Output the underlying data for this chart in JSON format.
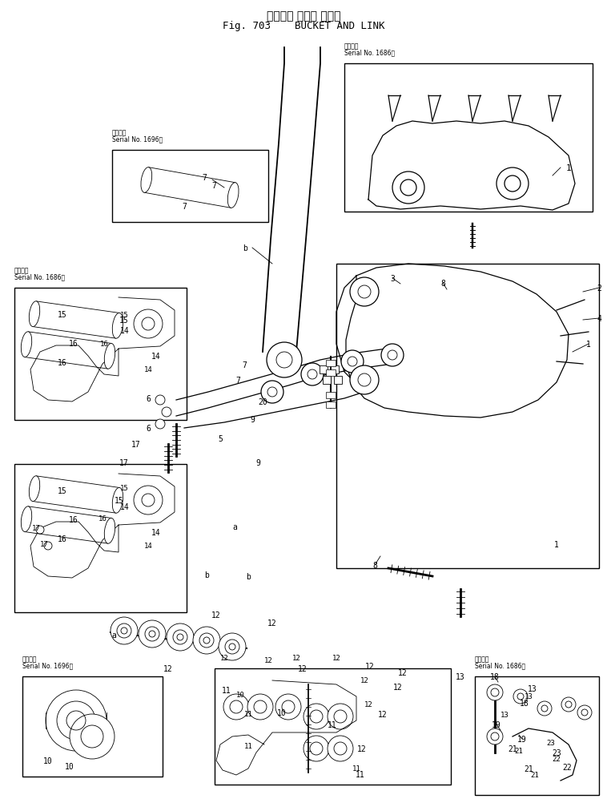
{
  "title_jp": "バケット および リンク",
  "title_en": "Fig. 703    BUCKET AND LINK",
  "bg_color": "#ffffff",
  "line_color": "#000000",
  "fig_width": 7.58,
  "fig_height": 10.03,
  "dpi": 100,
  "serial_1686": "適用号機\nSerial No. 1686－",
  "serial_1696": "適用号機\nSerial No. 1696～"
}
